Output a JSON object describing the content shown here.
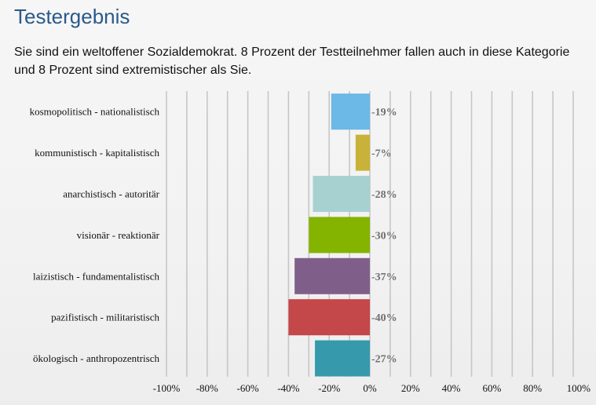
{
  "page": {
    "title": "Testergebnis",
    "result_text": "Sie sind ein weltoffener Sozialdemokrat. 8 Prozent der Testteilnehmer fallen auch in diese Kategorie und 8 Prozent sind extremistischer als Sie."
  },
  "chart_data": {
    "type": "bar",
    "orientation": "horizontal",
    "categories": [
      "kosmopolitisch - nationalistisch",
      "kommunistisch - kapitalistisch",
      "anarchistisch - autoritär",
      "visionär - reaktionär",
      "laizistisch - fundamentalistisch",
      "pazifistisch - militaristisch",
      "ökologisch - anthropozentrisch"
    ],
    "values": [
      -19,
      -7,
      -28,
      -30,
      -37,
      -40,
      -27
    ],
    "value_labels": [
      "-19%",
      "-7%",
      "-28%",
      "-30%",
      "-37%",
      "-40%",
      "-27%"
    ],
    "colors": [
      "#6cb8e6",
      "#c9b23a",
      "#a6d1d0",
      "#84b300",
      "#7f5f8a",
      "#c4474a",
      "#3699ac"
    ],
    "x_ticks": [
      -100,
      -80,
      -60,
      -40,
      -20,
      0,
      20,
      40,
      60,
      80,
      100
    ],
    "x_tick_labels": [
      "-100%",
      "-80%",
      "-60%",
      "-40%",
      "-20%",
      "0%",
      "20%",
      "40%",
      "60%",
      "80%",
      "100%"
    ],
    "xlim": [
      -100,
      100
    ],
    "grid": true,
    "legend": "none"
  }
}
